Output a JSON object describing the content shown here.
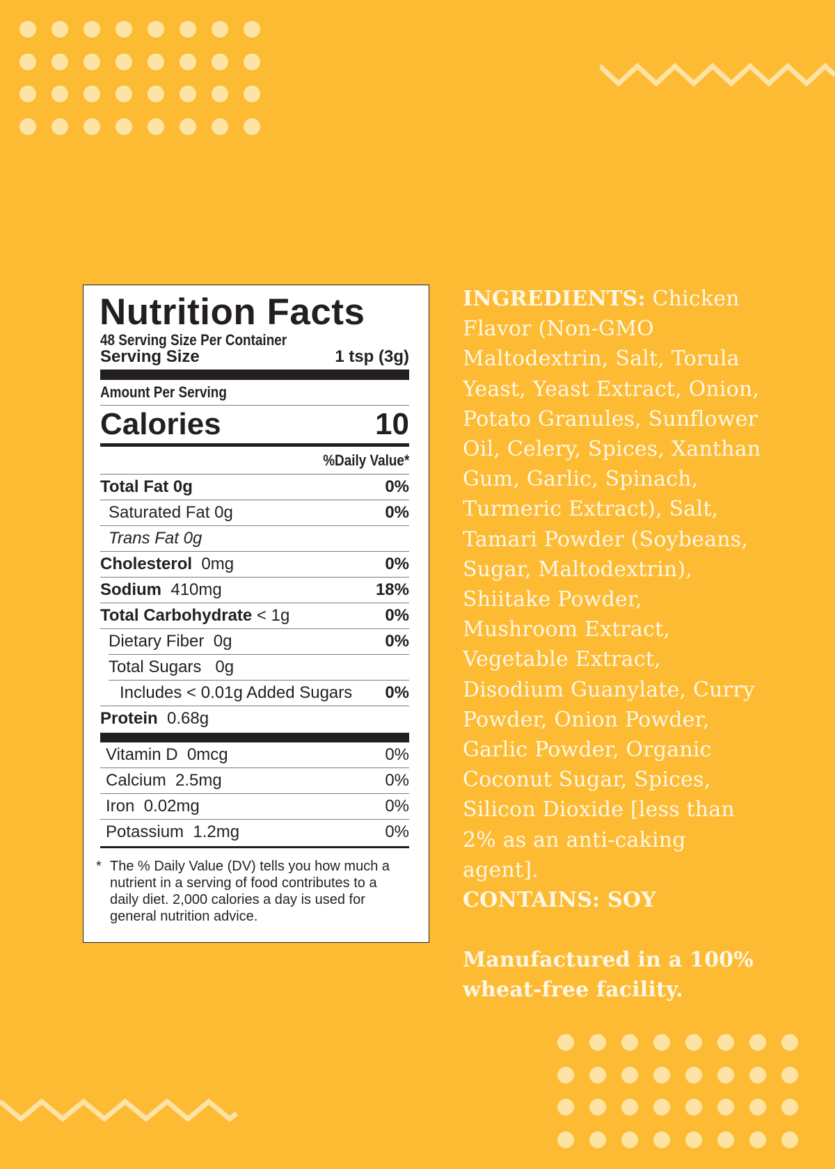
{
  "label": {
    "title": "Nutrition Facts",
    "servings_per_container": "48 Serving Size Per Container",
    "serving_size_label": "Serving Size",
    "serving_size_value": "1 tsp (3g)",
    "amount_per_serving": "Amount Per Serving",
    "calories_label": "Calories",
    "calories_value": "10",
    "daily_value_header": "%Daily Value*",
    "nutrients": [
      {
        "name": "Total Fat",
        "amount": "0g",
        "pct": "0%"
      },
      {
        "name": "Saturated  Fat",
        "amount": "0g",
        "pct": "0%"
      },
      {
        "name": "Trans Fat",
        "amount": "0g",
        "pct": ""
      },
      {
        "name": "Cholesterol",
        "amount": "0mg",
        "pct": "0%"
      },
      {
        "name": "Sodium",
        "amount": "410mg",
        "pct": "18%"
      },
      {
        "name": "Total Carbohydrate",
        "amount": "< 1g",
        "pct": "0%"
      },
      {
        "name": "Dietary Fiber",
        "amount": "0g",
        "pct": "0%"
      },
      {
        "name": "Total Sugars",
        "amount": "0g",
        "pct": ""
      },
      {
        "name": "Includes < 0.01g Added Sugars",
        "amount": "",
        "pct": "0%"
      },
      {
        "name": "Protein",
        "amount": "0.68g",
        "pct": ""
      }
    ],
    "vitamins": [
      {
        "name": "Vitamin D",
        "amount": "0mcg",
        "pct": "0%"
      },
      {
        "name": "Calcium",
        "amount": "2.5mg",
        "pct": "0%"
      },
      {
        "name": "Iron",
        "amount": "0.02mg",
        "pct": "0%"
      },
      {
        "name": "Potassium",
        "amount": "1.2mg",
        "pct": "0%"
      }
    ],
    "footnote_star": "*",
    "footnote": "The % Daily Value (DV) tells you how much a nutrient in a serving of food contributes to a daily diet. 2,000 calories a day is used for general nutrition advice."
  },
  "ingredients": {
    "heading": "INGREDIENTS:",
    "text": "Chicken Flavor (Non-GMO Maltodextrin, Salt, Torula Yeast, Yeast Extract, Onion, Potato Granules, Sunflower Oil, Celery, Spices, Xanthan Gum, Garlic, Spinach, Turmeric Extract), Salt, Tamari Powder (Soybeans, Sugar, Maltodextrin), Shiitake Powder, Mushroom Extract, Vegetable Extract, Disodium Guanylate, Curry Powder, Onion Powder, Garlic Powder, Organic Coconut Sugar, Spices, Silicon Dioxide [less than 2% as an anti-caking agent].",
    "contains": "CONTAINS: SOY",
    "manufactured": "Manufactured in a 100% wheat-free facility."
  },
  "colors": {
    "background": "#fdbb34",
    "decor": "#fde3a6",
    "label_ink": "#231f20",
    "ingredients_text": "#fff7e6"
  }
}
